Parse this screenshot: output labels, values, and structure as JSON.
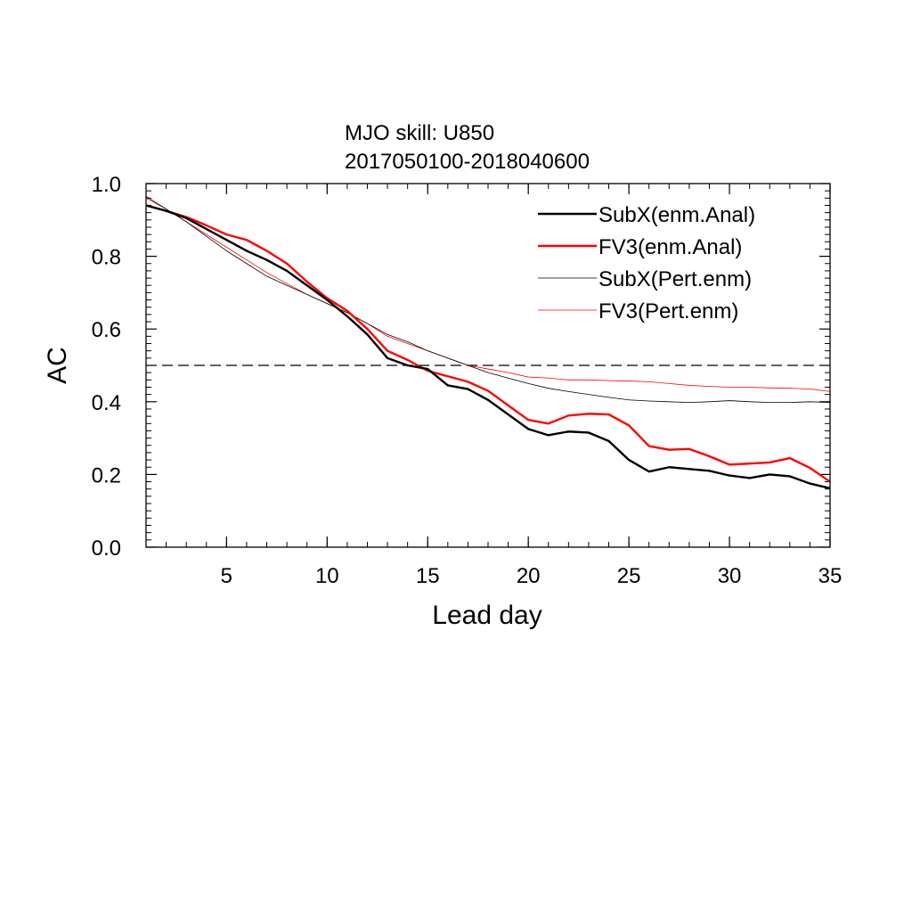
{
  "chart_data": {
    "type": "line",
    "title": "MJO skill: U850",
    "subtitle": "2017050100-2018040600",
    "xlabel": "Lead day",
    "ylabel": "AC",
    "xlim": [
      1,
      35
    ],
    "ylim": [
      0,
      1
    ],
    "xticks": [
      5,
      10,
      15,
      20,
      25,
      30,
      35
    ],
    "xtick_labels": [
      "5",
      "10",
      "15",
      "20",
      "25",
      "30",
      "35"
    ],
    "yticks": [
      0,
      0.2,
      0.4,
      0.6,
      0.8,
      1.0
    ],
    "ytick_labels": [
      "0.0",
      "0.2",
      "0.4",
      "0.6",
      "0.8",
      "1.0"
    ],
    "grid": false,
    "legend_position": "top-right",
    "reference_line": {
      "y": 0.5,
      "style": "dashed",
      "color": "#000000"
    },
    "x": [
      1,
      2,
      3,
      4,
      5,
      6,
      7,
      8,
      9,
      10,
      11,
      12,
      13,
      14,
      15,
      16,
      17,
      18,
      19,
      20,
      21,
      22,
      23,
      24,
      25,
      26,
      27,
      28,
      29,
      30,
      31,
      32,
      33,
      34,
      35
    ],
    "series": [
      {
        "name": "SubX(enm.Anal)",
        "color": "#000000",
        "width": "thick",
        "values": [
          0.94,
          0.925,
          0.905,
          0.875,
          0.845,
          0.815,
          0.79,
          0.76,
          0.72,
          0.68,
          0.635,
          0.585,
          0.52,
          0.5,
          0.49,
          0.445,
          0.435,
          0.405,
          0.365,
          0.325,
          0.308,
          0.318,
          0.315,
          0.292,
          0.24,
          0.208,
          0.22,
          0.215,
          0.21,
          0.197,
          0.19,
          0.2,
          0.195,
          0.175,
          0.162
        ]
      },
      {
        "name": "FV3(enm.Anal)",
        "color": "#ff0000",
        "width": "thick",
        "values": [
          0.94,
          0.925,
          0.908,
          0.885,
          0.86,
          0.845,
          0.815,
          0.78,
          0.73,
          0.685,
          0.65,
          0.6,
          0.54,
          0.515,
          0.485,
          0.47,
          0.455,
          0.43,
          0.39,
          0.35,
          0.34,
          0.362,
          0.367,
          0.365,
          0.335,
          0.278,
          0.268,
          0.27,
          0.25,
          0.227,
          0.23,
          0.233,
          0.245,
          0.218,
          0.18
        ]
      },
      {
        "name": "SubX(Pert.enm)",
        "color": "#000000",
        "width": "thin",
        "values": [
          0.965,
          0.93,
          0.895,
          0.855,
          0.815,
          0.78,
          0.745,
          0.72,
          0.695,
          0.67,
          0.645,
          0.615,
          0.585,
          0.565,
          0.54,
          0.52,
          0.5,
          0.48,
          0.465,
          0.45,
          0.437,
          0.428,
          0.42,
          0.412,
          0.405,
          0.402,
          0.4,
          0.398,
          0.4,
          0.403,
          0.4,
          0.398,
          0.398,
          0.4,
          0.398
        ]
      },
      {
        "name": "FV3(Pert.enm)",
        "color": "#ff0000",
        "width": "thin",
        "values": [
          0.96,
          0.93,
          0.895,
          0.86,
          0.825,
          0.79,
          0.755,
          0.725,
          0.695,
          0.67,
          0.645,
          0.615,
          0.58,
          0.56,
          0.54,
          0.52,
          0.5,
          0.49,
          0.48,
          0.468,
          0.465,
          0.46,
          0.46,
          0.458,
          0.457,
          0.455,
          0.45,
          0.445,
          0.442,
          0.44,
          0.44,
          0.438,
          0.437,
          0.435,
          0.428
        ]
      }
    ]
  }
}
